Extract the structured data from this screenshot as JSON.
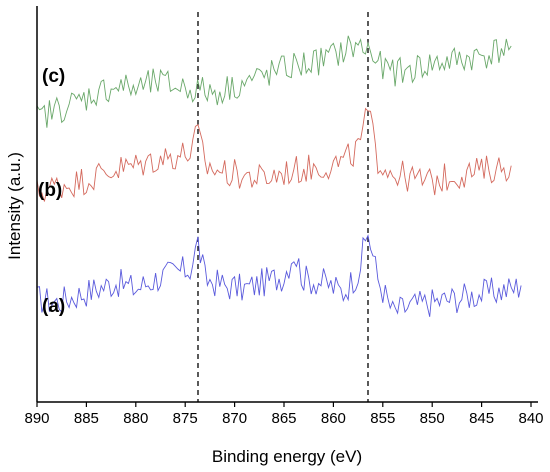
{
  "chart_data": {
    "type": "line",
    "xlabel": "Binding energy (eV)",
    "ylabel": "Intensity (a.u.)",
    "xlim": [
      890,
      840
    ],
    "x_reversed": true,
    "x_ticks": [
      890,
      885,
      880,
      875,
      870,
      865,
      860,
      855,
      850,
      845,
      840
    ],
    "y_ticks_shown": false,
    "grid": false,
    "reference_lines_x": [
      873.7,
      856.5
    ],
    "series": [
      {
        "name": "(a)",
        "color": "#5a5adc",
        "x": [
          890,
          888,
          886,
          884,
          882,
          880,
          878,
          876,
          874.5,
          873.7,
          873,
          871,
          869,
          867,
          865,
          864,
          863,
          861,
          859,
          857.5,
          856.5,
          855.5,
          854,
          852,
          850,
          848,
          846,
          844,
          842,
          841
        ],
        "values": [
          28,
          27,
          29,
          31,
          33,
          31,
          34,
          36,
          37,
          45,
          34,
          32,
          31,
          33,
          35,
          42,
          34,
          33,
          30,
          36,
          48,
          34,
          24,
          26,
          27,
          28,
          29,
          30,
          31,
          32
        ]
      },
      {
        "name": "(b)",
        "color": "#d46a5e",
        "x": [
          890,
          888,
          886,
          884,
          882,
          880,
          878,
          876,
          874.5,
          873.7,
          873,
          871,
          869,
          867,
          865,
          863,
          861,
          859,
          857.5,
          856.5,
          855.5,
          854,
          852,
          850,
          848,
          846,
          844,
          842
        ],
        "values": [
          60,
          62,
          63,
          65,
          67,
          68,
          70,
          71,
          72,
          78,
          68,
          66,
          65,
          64,
          66,
          67,
          68,
          69,
          73,
          84,
          70,
          66,
          64,
          63,
          65,
          66,
          67,
          68
        ]
      },
      {
        "name": "(c)",
        "color": "#6aa86a",
        "x": [
          890,
          888,
          886,
          884,
          882,
          880,
          878,
          876,
          874,
          872,
          870,
          868,
          866,
          864,
          862,
          860,
          858,
          856.5,
          855,
          853,
          851,
          849,
          847,
          845,
          843,
          842
        ],
        "values": [
          82,
          85,
          87,
          90,
          92,
          91,
          93,
          92,
          91,
          90,
          92,
          94,
          96,
          98,
          99,
          101,
          104,
          103,
          97,
          96,
          98,
          99,
          100,
          101,
          103,
          104
        ]
      }
    ]
  }
}
